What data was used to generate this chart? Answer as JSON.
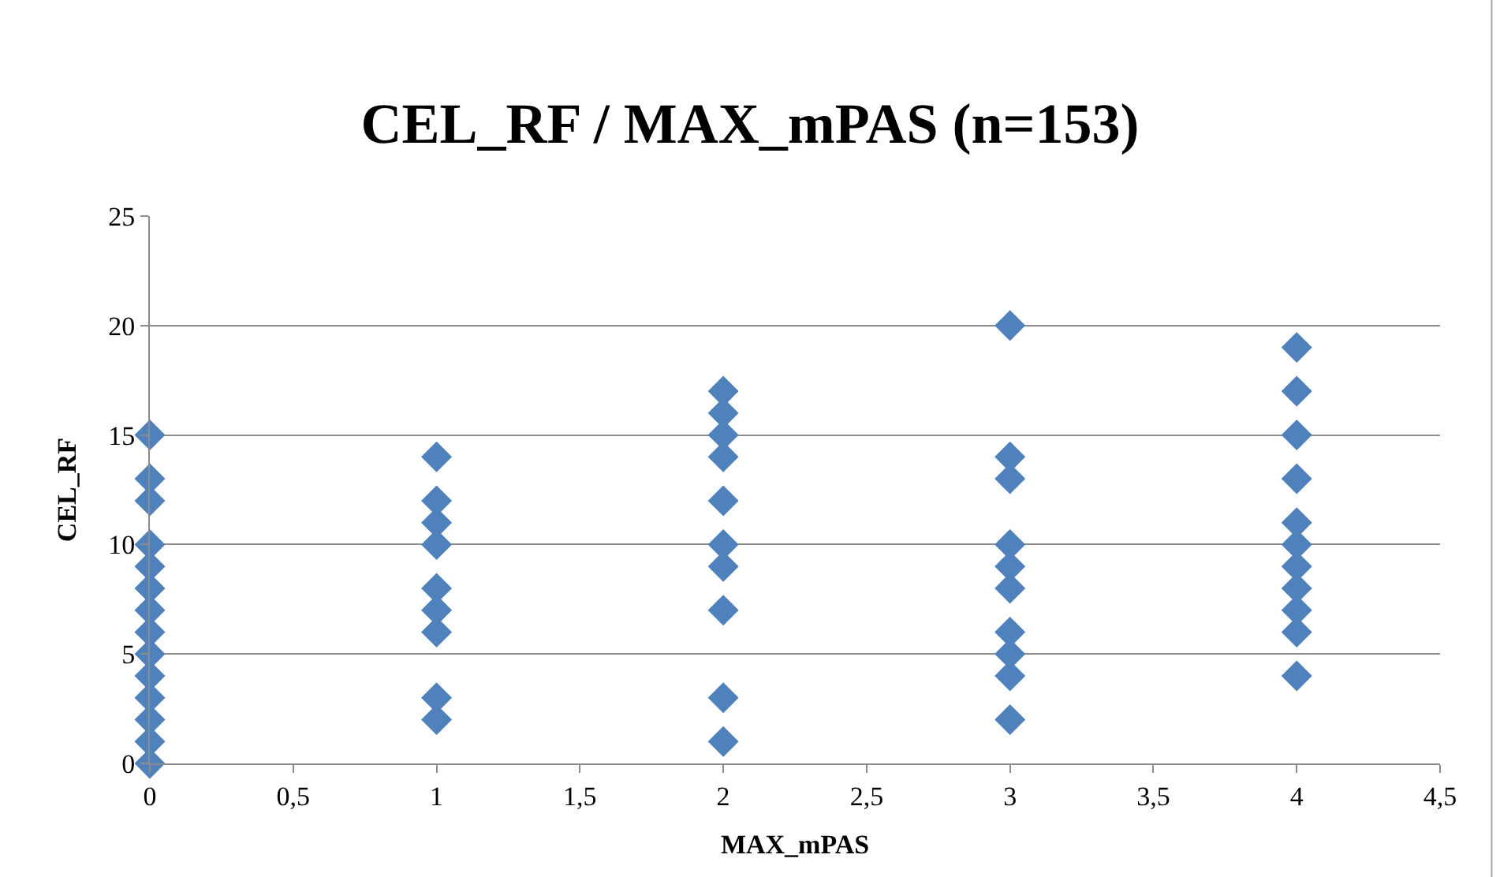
{
  "chart_data": {
    "type": "scatter",
    "title": "CEL_RF / MAX_mPAS (n=153)",
    "xlabel": "MAX_mPAS",
    "ylabel": "CEL_RF",
    "series": [
      {
        "color": "#4f81bd",
        "x": [
          0,
          0,
          0,
          0,
          0,
          0,
          0,
          0,
          0,
          0,
          0,
          0,
          0,
          0,
          1,
          1,
          1,
          1,
          1,
          1,
          1,
          1,
          1,
          2,
          2,
          2,
          2,
          2,
          2,
          2,
          2,
          2,
          2,
          3,
          3,
          3,
          3,
          3,
          3,
          3,
          3,
          3,
          3,
          4,
          4,
          4,
          4,
          4,
          4,
          4,
          4,
          4,
          4,
          4
        ],
        "values": [
          0,
          1,
          2,
          3,
          4,
          5,
          6,
          7,
          8,
          9,
          10,
          12,
          13,
          15,
          2,
          3,
          6,
          7,
          8,
          10,
          11,
          12,
          14,
          1,
          3,
          7,
          9,
          10,
          12,
          14,
          15,
          16,
          17,
          2,
          4,
          5,
          6,
          8,
          9,
          10,
          13,
          14,
          20,
          4,
          6,
          7,
          8,
          9,
          10,
          11,
          13,
          15,
          17,
          19
        ]
      }
    ],
    "xlim": [
      0,
      4.5
    ],
    "xticks": [
      0,
      {
        "value": 0.5,
        "label": "0,5"
      },
      1,
      {
        "value": 1.5,
        "label": "1,5"
      },
      2,
      {
        "value": 2.5,
        "label": "2,5"
      },
      3,
      {
        "value": 3.5,
        "label": "3,5"
      },
      4,
      {
        "value": 4.5,
        "label": "4,5"
      }
    ],
    "ylim": [
      0,
      25
    ],
    "yticks": [
      0,
      5,
      10,
      15,
      20,
      25
    ],
    "grid": "y",
    "marker": "diamond",
    "legend": false
  }
}
